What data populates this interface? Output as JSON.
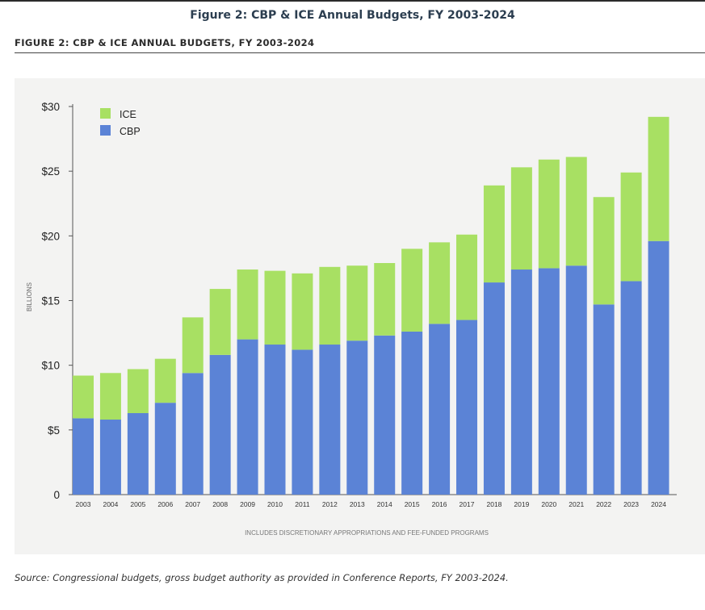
{
  "page": {
    "title": "Figure 2: CBP & ICE Annual Budgets, FY 2003-2024",
    "figure_heading": "FIGURE 2: CBP & ICE ANNUAL BUDGETS, FY 2003-2024",
    "source": "Source: Congressional budgets, gross budget authority as provided in Conference Reports, FY 2003-2024."
  },
  "colors": {
    "cbp": "#5b83d6",
    "ice": "#a8e063",
    "axis": "#555555",
    "panel": "#f3f3f2"
  },
  "chart_data": {
    "type": "bar",
    "stacked": true,
    "title": "",
    "ylabel": "BILLIONS",
    "xlabel": "INCLUDES DISCRETIONARY APPROPRIATIONS AND FEE-FUNDED PROGRAMS",
    "ylim": [
      0,
      30
    ],
    "yticks": [
      0,
      5,
      10,
      15,
      20,
      25,
      30
    ],
    "ytick_labels": [
      "0",
      "$5",
      "$10",
      "$15",
      "$20",
      "$25",
      "$30"
    ],
    "legend_position": "top-left",
    "categories": [
      "2003",
      "2004",
      "2005",
      "2006",
      "2007",
      "2008",
      "2009",
      "2010",
      "2011",
      "2012",
      "2013",
      "2014",
      "2015",
      "2016",
      "2017",
      "2018",
      "2019",
      "2020",
      "2021",
      "2022",
      "2023",
      "2024"
    ],
    "series": [
      {
        "name": "CBP",
        "values": [
          5.9,
          5.8,
          6.3,
          7.1,
          9.4,
          10.8,
          12.0,
          11.6,
          11.2,
          11.6,
          11.9,
          12.3,
          12.6,
          13.2,
          13.5,
          16.4,
          17.4,
          17.5,
          17.7,
          14.7,
          16.5,
          19.6
        ]
      },
      {
        "name": "ICE",
        "values": [
          3.3,
          3.6,
          3.4,
          3.4,
          4.3,
          5.1,
          5.4,
          5.7,
          5.9,
          6.0,
          5.8,
          5.6,
          6.4,
          6.3,
          6.6,
          7.5,
          7.9,
          8.4,
          8.4,
          8.3,
          8.4,
          9.6
        ]
      }
    ]
  }
}
